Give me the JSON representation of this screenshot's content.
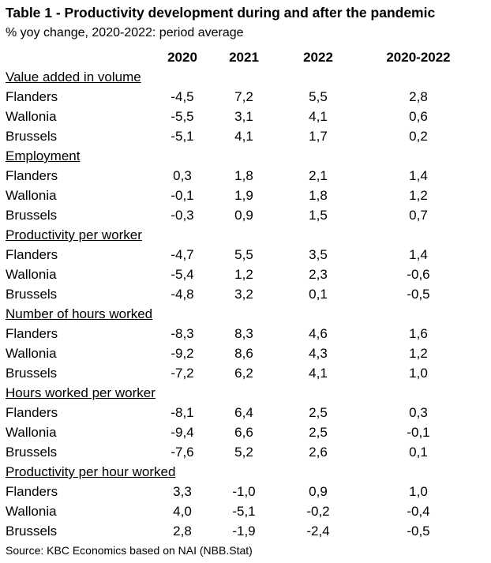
{
  "title": "Table 1 - Productivity development during and after the pandemic",
  "subtitle": "% yoy change, 2020-2022: period average",
  "columns": [
    "2020",
    "2021",
    "2022",
    "2020-2022"
  ],
  "sections": [
    {
      "name": "Value added in volume",
      "rows": [
        {
          "region": "Flanders",
          "values": [
            "-4,5",
            "7,2",
            "5,5",
            "2,8"
          ]
        },
        {
          "region": "Wallonia",
          "values": [
            "-5,5",
            "3,1",
            "4,1",
            "0,6"
          ]
        },
        {
          "region": "Brussels",
          "values": [
            "-5,1",
            "4,1",
            "1,7",
            "0,2"
          ]
        }
      ]
    },
    {
      "name": "Employment",
      "rows": [
        {
          "region": "Flanders",
          "values": [
            "0,3",
            "1,8",
            "2,1",
            "1,4"
          ]
        },
        {
          "region": "Wallonia",
          "values": [
            "-0,1",
            "1,9",
            "1,8",
            "1,2"
          ]
        },
        {
          "region": "Brussels",
          "values": [
            "-0,3",
            "0,9",
            "1,5",
            "0,7"
          ]
        }
      ]
    },
    {
      "name": "Productivity per worker",
      "rows": [
        {
          "region": "Flanders",
          "values": [
            "-4,7",
            "5,5",
            "3,5",
            "1,4"
          ]
        },
        {
          "region": "Wallonia",
          "values": [
            "-5,4",
            "1,2",
            "2,3",
            "-0,6"
          ]
        },
        {
          "region": "Brussels",
          "values": [
            "-4,8",
            "3,2",
            "0,1",
            "-0,5"
          ]
        }
      ]
    },
    {
      "name": "Number of hours worked",
      "rows": [
        {
          "region": "Flanders",
          "values": [
            "-8,3",
            "8,3",
            "4,6",
            "1,6"
          ]
        },
        {
          "region": "Wallonia",
          "values": [
            "-9,2",
            "8,6",
            "4,3",
            "1,2"
          ]
        },
        {
          "region": "Brussels",
          "values": [
            "-7,2",
            "6,2",
            "4,1",
            "1,0"
          ]
        }
      ]
    },
    {
      "name": "Hours worked per worker",
      "rows": [
        {
          "region": "Flanders",
          "values": [
            "-8,1",
            "6,4",
            "2,5",
            "0,3"
          ]
        },
        {
          "region": "Wallonia",
          "values": [
            "-9,4",
            "6,6",
            "2,5",
            "-0,1"
          ]
        },
        {
          "region": "Brussels",
          "values": [
            "-7,6",
            "5,2",
            "2,6",
            "0,1"
          ]
        }
      ]
    },
    {
      "name": "Productivity per hour worked",
      "rows": [
        {
          "region": "Flanders",
          "values": [
            "3,3",
            "-1,0",
            "0,9",
            "1,0"
          ]
        },
        {
          "region": "Wallonia",
          "values": [
            "4,0",
            "-5,1",
            "-0,2",
            "-0,4"
          ]
        },
        {
          "region": "Brussels",
          "values": [
            "2,8",
            "-1,9",
            "-2,4",
            "-0,5"
          ]
        }
      ]
    }
  ],
  "source": "Source: KBC Economics based on NAI (NBB.Stat)"
}
